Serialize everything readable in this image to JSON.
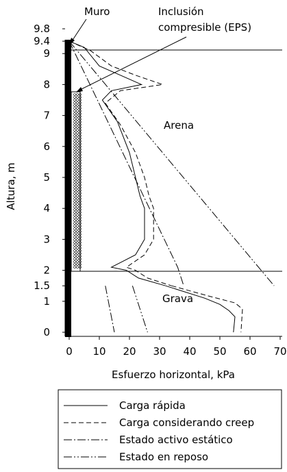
{
  "chart_data": {
    "type": "line",
    "title": "",
    "xlabel": "Esfuerzo horizontal, kPa",
    "ylabel": "Altura, m",
    "xlim": [
      0,
      70
    ],
    "ylim": [
      0,
      9.8
    ],
    "x_ticks": [
      0,
      10,
      20,
      30,
      40,
      50,
      60,
      70
    ],
    "y_ticks": [
      0,
      1,
      1.5,
      2,
      3,
      4,
      5,
      6,
      7,
      8,
      9,
      9.4,
      9.8
    ],
    "grid": false,
    "legend_position": "bottom",
    "annotations": {
      "wall": "Muro",
      "inclusion": "Inclusión compresible (EPS)",
      "sand": "Arena",
      "gravel": "Grava"
    },
    "series": [
      {
        "name": "Carga rápida",
        "style": "solid",
        "segments": [
          [
            [
              0,
              9.4
            ],
            [
              5,
              9.2
            ],
            [
              10,
              8.6
            ],
            [
              17,
              8.3
            ],
            [
              24,
              8.0
            ],
            [
              14,
              7.8
            ],
            [
              11,
              7.5
            ],
            [
              16,
              6.8
            ],
            [
              20,
              5.8
            ],
            [
              22,
              5.0
            ],
            [
              23.5,
              4.4
            ],
            [
              25,
              4.0
            ],
            [
              25,
              3.0
            ],
            [
              22,
              2.5
            ],
            [
              14,
              2.1
            ],
            [
              19,
              2.0
            ],
            [
              23,
              1.75
            ],
            [
              32,
              1.5
            ]
          ],
          [
            [
              32,
              1.5
            ],
            [
              45,
              1.1
            ],
            [
              50,
              0.9
            ],
            [
              53,
              0.7
            ],
            [
              55,
              0.5
            ],
            [
              54.5,
              0
            ]
          ]
        ]
      },
      {
        "name": "Carga considerando creep",
        "style": "dashed",
        "segments": [
          [
            [
              0,
              9.4
            ],
            [
              7,
              9.1
            ],
            [
              14,
              8.6
            ],
            [
              22,
              8.3
            ],
            [
              31,
              8.0
            ],
            [
              17,
              7.8
            ],
            [
              12,
              7.4
            ],
            [
              17,
              6.7
            ],
            [
              22,
              5.8
            ],
            [
              25,
              5.0
            ],
            [
              26.5,
              4.4
            ],
            [
              28,
              4.0
            ],
            [
              28,
              3.0
            ],
            [
              25,
              2.5
            ],
            [
              19,
              2.1
            ],
            [
              22,
              2.0
            ],
            [
              26,
              1.75
            ],
            [
              34,
              1.5
            ]
          ],
          [
            [
              34,
              1.5
            ],
            [
              47,
              1.15
            ],
            [
              55,
              0.95
            ],
            [
              57.5,
              0.75
            ],
            [
              57,
              0
            ]
          ]
        ]
      },
      {
        "name": "Estado activo estático",
        "style": "dashdot",
        "segments": [
          [
            [
              0,
              9.4
            ],
            [
              36,
              2.1
            ],
            [
              38,
              1.5
            ]
          ],
          [
            [
              12,
              1.5
            ],
            [
              15,
              0
            ]
          ]
        ]
      },
      {
        "name": "Estado en reposo",
        "style": "dashdotdot",
        "segments": [
          [
            [
              0,
              9.4
            ],
            [
              68,
              1.5
            ]
          ],
          [
            [
              21,
              1.5
            ],
            [
              26,
              0
            ]
          ]
        ]
      }
    ]
  }
}
